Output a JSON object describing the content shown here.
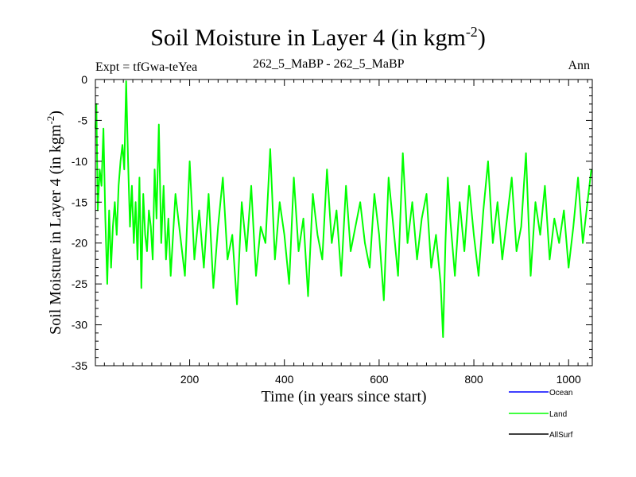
{
  "chart_data": {
    "type": "line",
    "title": "Soil Moisture in Layer 4 (in kgm",
    "title_superscript": "-2",
    "title_close": ")",
    "expt_label": "Expt = tfGwa-teYea",
    "subtitle": "262_5_MaBP - 262_5_MaBP",
    "period": "Ann",
    "xlabel": "Time (in years since start)",
    "ylabel": "Soil Moisture in Layer 4 (in kgm",
    "ylabel_superscript": "-2",
    "ylabel_close": ")",
    "xlim": [
      1,
      1050
    ],
    "ylim": [
      -35,
      0
    ],
    "xticks": [
      200,
      400,
      600,
      800,
      1000
    ],
    "yticks": [
      0,
      -5,
      -10,
      -15,
      -20,
      -25,
      -30,
      -35
    ],
    "ytick_labels": [
      "0",
      "-5",
      "-10",
      "-15",
      "-20",
      "-25",
      "-30",
      "-35"
    ],
    "legend": [
      {
        "name": "Ocean",
        "color": "#0000ff"
      },
      {
        "name": "Land",
        "color": "#00ff00"
      },
      {
        "name": "AllSurf",
        "color": "#000000"
      }
    ],
    "series": [
      {
        "name": "Land",
        "color": "#00ff00",
        "x": [
          1,
          3,
          6,
          10,
          14,
          18,
          22,
          26,
          30,
          34,
          38,
          42,
          46,
          50,
          54,
          58,
          62,
          66,
          70,
          74,
          78,
          82,
          86,
          90,
          94,
          98,
          102,
          106,
          110,
          114,
          118,
          122,
          126,
          130,
          135,
          140,
          145,
          150,
          155,
          160,
          170,
          180,
          190,
          200,
          210,
          220,
          230,
          240,
          250,
          260,
          270,
          280,
          290,
          300,
          310,
          320,
          330,
          340,
          350,
          360,
          370,
          380,
          390,
          400,
          410,
          420,
          430,
          440,
          450,
          460,
          470,
          480,
          490,
          500,
          510,
          520,
          530,
          540,
          550,
          560,
          570,
          580,
          590,
          600,
          610,
          620,
          630,
          640,
          650,
          660,
          670,
          680,
          690,
          700,
          710,
          720,
          730,
          735,
          740,
          745,
          750,
          760,
          770,
          780,
          790,
          800,
          810,
          820,
          830,
          840,
          850,
          860,
          870,
          880,
          890,
          900,
          910,
          920,
          930,
          940,
          950,
          960,
          970,
          980,
          990,
          1000,
          1010,
          1020,
          1030,
          1040,
          1048
        ],
        "values": [
          -6,
          -3,
          -16,
          -11,
          -13,
          -6,
          -17,
          -25,
          -16,
          -23,
          -18,
          -15,
          -19,
          -13,
          -10,
          -8,
          -11,
          -0.2,
          -10,
          -18,
          -13,
          -20,
          -15,
          -22,
          -12,
          -25.5,
          -14,
          -19,
          -21,
          -16,
          -18,
          -22,
          -11,
          -17,
          -5.5,
          -20,
          -13,
          -22,
          -17,
          -24,
          -14,
          -19,
          -24,
          -10,
          -22,
          -16,
          -23,
          -14,
          -25.5,
          -18,
          -12,
          -22,
          -19,
          -27.5,
          -15,
          -21,
          -13,
          -24,
          -18,
          -20,
          -8.5,
          -22,
          -15,
          -19,
          -25,
          -12,
          -21,
          -17,
          -26.5,
          -14,
          -19,
          -22,
          -11,
          -20,
          -16,
          -24,
          -13,
          -21,
          -18,
          -15,
          -20,
          -23,
          -14,
          -19,
          -27,
          -12,
          -18,
          -24,
          -9,
          -20,
          -15,
          -22,
          -17,
          -14,
          -23,
          -19,
          -25,
          -31.5,
          -20,
          -12,
          -17,
          -24,
          -15,
          -21,
          -13,
          -19,
          -24,
          -16,
          -10,
          -20,
          -15,
          -22,
          -17,
          -12,
          -21,
          -18,
          -9,
          -24,
          -15,
          -19,
          -13,
          -22,
          -17,
          -20,
          -16,
          -23,
          -18,
          -12,
          -20,
          -15,
          -11
        ]
      }
    ]
  }
}
